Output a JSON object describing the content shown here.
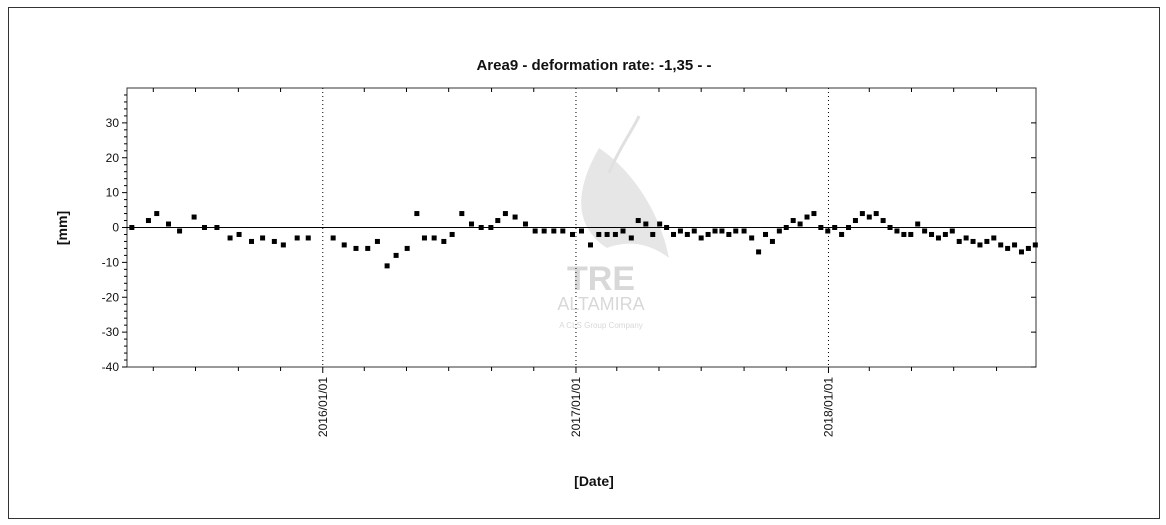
{
  "chart_data": {
    "type": "scatter",
    "title": "Area9 - deformation rate: -1,35 -  -",
    "xlabel": "[Date]",
    "ylabel": "[mm]",
    "x_range": [
      "2015-03-24",
      "2018-10-28"
    ],
    "ylim": [
      -40,
      40
    ],
    "y_ticks": [
      30,
      20,
      10,
      0,
      -10,
      -20,
      -30,
      -40
    ],
    "x_ticks": [
      "2016/01/01",
      "2017/01/01",
      "2018/01/01"
    ],
    "grid": "vertical dotted lines at year ticks; solid zero line",
    "watermark": {
      "logo_text": "TRE",
      "name_text": "ALTAMIRA",
      "tagline": "A CLS Group Company"
    },
    "series": [
      {
        "marker": "square",
        "color": "#000000",
        "points": [
          {
            "x": "2015-03-31",
            "y": 0
          },
          {
            "x": "2015-04-24",
            "y": 2
          },
          {
            "x": "2015-05-06",
            "y": 4
          },
          {
            "x": "2015-05-23",
            "y": 1
          },
          {
            "x": "2015-06-08",
            "y": -1
          },
          {
            "x": "2015-06-29",
            "y": 3
          },
          {
            "x": "2015-07-14",
            "y": 0
          },
          {
            "x": "2015-08-01",
            "y": 0
          },
          {
            "x": "2015-08-20",
            "y": -3
          },
          {
            "x": "2015-09-02",
            "y": -2
          },
          {
            "x": "2015-09-20",
            "y": -4
          },
          {
            "x": "2015-10-06",
            "y": -3
          },
          {
            "x": "2015-10-23",
            "y": -4
          },
          {
            "x": "2015-11-05",
            "y": -5
          },
          {
            "x": "2015-11-25",
            "y": -3
          },
          {
            "x": "2015-12-11",
            "y": -3
          },
          {
            "x": "2016-01-16",
            "y": -3
          },
          {
            "x": "2016-02-01",
            "y": -5
          },
          {
            "x": "2016-02-18",
            "y": -6
          },
          {
            "x": "2016-03-06",
            "y": -6
          },
          {
            "x": "2016-03-20",
            "y": -4
          },
          {
            "x": "2016-04-03",
            "y": -11
          },
          {
            "x": "2016-04-16",
            "y": -8
          },
          {
            "x": "2016-05-02",
            "y": -6
          },
          {
            "x": "2016-05-16",
            "y": 4
          },
          {
            "x": "2016-05-27",
            "y": -3
          },
          {
            "x": "2016-06-10",
            "y": -3
          },
          {
            "x": "2016-06-24",
            "y": -4
          },
          {
            "x": "2016-07-06",
            "y": -2
          },
          {
            "x": "2016-07-20",
            "y": 4
          },
          {
            "x": "2016-08-03",
            "y": 1
          },
          {
            "x": "2016-08-17",
            "y": 0
          },
          {
            "x": "2016-08-31",
            "y": 0
          },
          {
            "x": "2016-09-10",
            "y": 2
          },
          {
            "x": "2016-09-21",
            "y": 4
          },
          {
            "x": "2016-10-05",
            "y": 3
          },
          {
            "x": "2016-10-20",
            "y": 1
          },
          {
            "x": "2016-11-03",
            "y": -1
          },
          {
            "x": "2016-11-16",
            "y": -1
          },
          {
            "x": "2016-11-30",
            "y": -1
          },
          {
            "x": "2016-12-13",
            "y": -1
          },
          {
            "x": "2016-12-27",
            "y": -2
          },
          {
            "x": "2017-01-09",
            "y": -1
          },
          {
            "x": "2017-01-22",
            "y": -5
          },
          {
            "x": "2017-02-03",
            "y": -2
          },
          {
            "x": "2017-02-15",
            "y": -2
          },
          {
            "x": "2017-02-27",
            "y": -2
          },
          {
            "x": "2017-03-10",
            "y": -1
          },
          {
            "x": "2017-03-22",
            "y": -3
          },
          {
            "x": "2017-04-01",
            "y": 2
          },
          {
            "x": "2017-04-12",
            "y": 1
          },
          {
            "x": "2017-04-22",
            "y": -2
          },
          {
            "x": "2017-05-02",
            "y": 1
          },
          {
            "x": "2017-05-12",
            "y": 0
          },
          {
            "x": "2017-05-22",
            "y": -2
          },
          {
            "x": "2017-06-01",
            "y": -1
          },
          {
            "x": "2017-06-11",
            "y": -2
          },
          {
            "x": "2017-06-21",
            "y": -1
          },
          {
            "x": "2017-07-01",
            "y": -3
          },
          {
            "x": "2017-07-11",
            "y": -2
          },
          {
            "x": "2017-07-21",
            "y": -1
          },
          {
            "x": "2017-07-31",
            "y": -1
          },
          {
            "x": "2017-08-10",
            "y": -2
          },
          {
            "x": "2017-08-20",
            "y": -1
          },
          {
            "x": "2017-09-01",
            "y": -1
          },
          {
            "x": "2017-09-12",
            "y": -3
          },
          {
            "x": "2017-09-22",
            "y": -7
          },
          {
            "x": "2017-10-02",
            "y": -2
          },
          {
            "x": "2017-10-12",
            "y": -4
          },
          {
            "x": "2017-10-22",
            "y": -1
          },
          {
            "x": "2017-11-01",
            "y": 0
          },
          {
            "x": "2017-11-11",
            "y": 2
          },
          {
            "x": "2017-11-21",
            "y": 1
          },
          {
            "x": "2017-12-01",
            "y": 3
          },
          {
            "x": "2017-12-11",
            "y": 4
          },
          {
            "x": "2017-12-21",
            "y": 0
          },
          {
            "x": "2017-12-31",
            "y": -1
          },
          {
            "x": "2018-01-10",
            "y": 0
          },
          {
            "x": "2018-01-20",
            "y": -2
          },
          {
            "x": "2018-01-30",
            "y": 0
          },
          {
            "x": "2018-02-09",
            "y": 2
          },
          {
            "x": "2018-02-19",
            "y": 4
          },
          {
            "x": "2018-03-01",
            "y": 3
          },
          {
            "x": "2018-03-11",
            "y": 4
          },
          {
            "x": "2018-03-21",
            "y": 2
          },
          {
            "x": "2018-03-31",
            "y": 0
          },
          {
            "x": "2018-04-10",
            "y": -1
          },
          {
            "x": "2018-04-20",
            "y": -2
          },
          {
            "x": "2018-04-30",
            "y": -2
          },
          {
            "x": "2018-05-10",
            "y": 1
          },
          {
            "x": "2018-05-20",
            "y": -1
          },
          {
            "x": "2018-05-30",
            "y": -2
          },
          {
            "x": "2018-06-09",
            "y": -3
          },
          {
            "x": "2018-06-19",
            "y": -2
          },
          {
            "x": "2018-06-29",
            "y": -1
          },
          {
            "x": "2018-07-09",
            "y": -4
          },
          {
            "x": "2018-07-19",
            "y": -3
          },
          {
            "x": "2018-07-29",
            "y": -4
          },
          {
            "x": "2018-08-08",
            "y": -5
          },
          {
            "x": "2018-08-18",
            "y": -4
          },
          {
            "x": "2018-08-28",
            "y": -3
          },
          {
            "x": "2018-09-07",
            "y": -5
          },
          {
            "x": "2018-09-17",
            "y": -6
          },
          {
            "x": "2018-09-27",
            "y": -5
          },
          {
            "x": "2018-10-07",
            "y": -7
          },
          {
            "x": "2018-10-17",
            "y": -6
          },
          {
            "x": "2018-10-27",
            "y": -5
          }
        ]
      }
    ]
  }
}
